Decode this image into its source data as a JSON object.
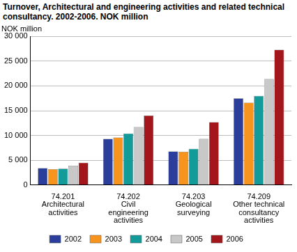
{
  "chart_data": {
    "type": "bar",
    "title": "Turnover, Architectural and engineering activities and related technical consultancy. 2002-2006. NOK million",
    "y_label": "NOK million",
    "categories": [
      "74.201\nArchitectural\nactivities",
      "74.202\nCivil\nengineering\nactivities",
      "74.203\nGeological\nsurveying",
      "74.209\nOther technical\nconsultancy\nactivities"
    ],
    "series": [
      {
        "name": "2002",
        "color": "#2b3e9c",
        "values": [
          3400,
          9300,
          6800,
          17500
        ]
      },
      {
        "name": "2003",
        "color": "#f7941d",
        "values": [
          3200,
          9600,
          6700,
          16600
        ]
      },
      {
        "name": "2004",
        "color": "#139b9a",
        "values": [
          3300,
          10400,
          7300,
          18000
        ]
      },
      {
        "name": "2005",
        "color": "#c8c8c8",
        "values": [
          3900,
          11700,
          9300,
          21400
        ]
      },
      {
        "name": "2006",
        "color": "#a3161b",
        "values": [
          4500,
          14000,
          12700,
          27300
        ]
      }
    ],
    "ylim": [
      0,
      30000
    ],
    "yticks": [
      0,
      {
        "value": 5000,
        "label": "5 000"
      },
      {
        "value": 10000,
        "label": "10 000"
      },
      {
        "value": 15000,
        "label": "15 000"
      },
      {
        "value": 20000,
        "label": "20 000"
      },
      {
        "value": 25000,
        "label": "25 000"
      },
      {
        "value": 30000,
        "label": "30 000"
      }
    ],
    "grid": true,
    "legend": "bottom"
  }
}
